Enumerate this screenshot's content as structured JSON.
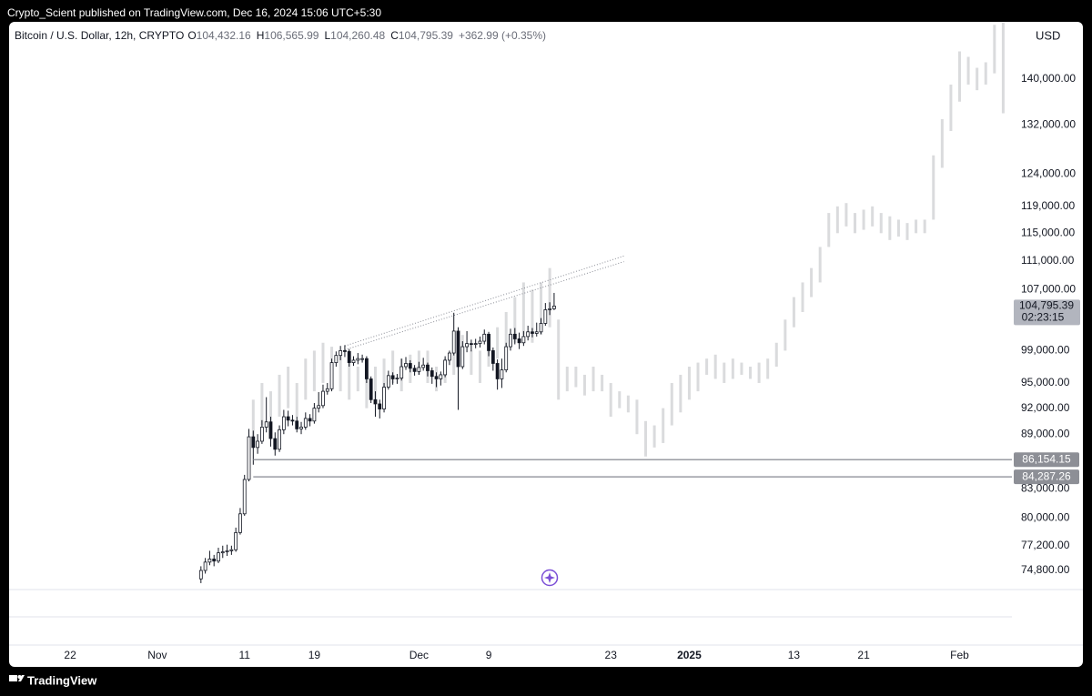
{
  "header": {
    "publisher": "Crypto_Scient published on TradingView.com, Dec 16, 2024 15:06 UTC+5:30"
  },
  "footer": {
    "brand": "TradingView"
  },
  "chart_data": {
    "type": "candlestick",
    "title": "Bitcoin / U.S. Dollar, 12h, CRYPTO",
    "legend": [
      {
        "key": "O",
        "value": "104,432.16"
      },
      {
        "key": "H",
        "value": "106,565.99"
      },
      {
        "key": "L",
        "value": "104,260.48"
      },
      {
        "key": "C",
        "value": "104,795.39"
      }
    ],
    "change": "+362.99 (+0.35%)",
    "currency": "USD",
    "log_scale": true,
    "colors": {
      "up": "#ffffff",
      "down": "#131722",
      "wick": "#131722"
    },
    "x": [
      "2024-11-06T00:00",
      "2024-11-06T12:00",
      "2024-11-07T00:00",
      "2024-11-07T12:00",
      "2024-11-08T00:00",
      "2024-11-08T12:00",
      "2024-11-09T00:00",
      "2024-11-09T12:00",
      "2024-11-10T00:00",
      "2024-11-10T12:00",
      "2024-11-11T00:00",
      "2024-11-11T12:00",
      "2024-11-12T00:00",
      "2024-11-12T12:00",
      "2024-11-13T00:00",
      "2024-11-13T12:00",
      "2024-11-14T00:00",
      "2024-11-14T12:00",
      "2024-11-15T00:00",
      "2024-11-15T12:00",
      "2024-11-16T00:00",
      "2024-11-16T12:00",
      "2024-11-17T00:00",
      "2024-11-17T12:00",
      "2024-11-18T00:00",
      "2024-11-18T12:00",
      "2024-11-19T00:00",
      "2024-11-19T12:00",
      "2024-11-20T00:00",
      "2024-11-20T12:00",
      "2024-11-21T00:00",
      "2024-11-21T12:00",
      "2024-11-22T00:00",
      "2024-11-22T12:00",
      "2024-11-23T00:00",
      "2024-11-23T12:00",
      "2024-11-24T00:00",
      "2024-11-24T12:00",
      "2024-11-25T00:00",
      "2024-11-25T12:00",
      "2024-11-26T00:00",
      "2024-11-26T12:00",
      "2024-11-27T00:00",
      "2024-11-27T12:00",
      "2024-11-28T00:00",
      "2024-11-28T12:00",
      "2024-11-29T00:00",
      "2024-11-29T12:00",
      "2024-11-30T00:00",
      "2024-11-30T12:00",
      "2024-12-01T00:00",
      "2024-12-01T12:00",
      "2024-12-02T00:00",
      "2024-12-02T12:00",
      "2024-12-03T00:00",
      "2024-12-03T12:00",
      "2024-12-04T00:00",
      "2024-12-04T12:00",
      "2024-12-05T00:00",
      "2024-12-05T12:00",
      "2024-12-06T00:00",
      "2024-12-06T12:00",
      "2024-12-07T00:00",
      "2024-12-07T12:00",
      "2024-12-08T00:00",
      "2024-12-08T12:00",
      "2024-12-09T00:00",
      "2024-12-09T12:00",
      "2024-12-10T00:00",
      "2024-12-10T12:00",
      "2024-12-11T00:00",
      "2024-12-11T12:00",
      "2024-12-12T00:00",
      "2024-12-12T12:00",
      "2024-12-13T00:00",
      "2024-12-13T12:00",
      "2024-12-14T00:00",
      "2024-12-14T12:00",
      "2024-12-15T00:00",
      "2024-12-15T12:00",
      "2024-12-16T00:00",
      "2024-12-16T12:00"
    ],
    "open": [
      74000,
      74800,
      75600,
      75900,
      75700,
      76500,
      76600,
      76700,
      76800,
      78500,
      80400,
      84000,
      88700,
      87500,
      88200,
      89800,
      90400,
      88500,
      87300,
      89500,
      91000,
      90600,
      90500,
      89600,
      89800,
      90800,
      90500,
      92000,
      92300,
      94000,
      94300,
      97500,
      98400,
      99000,
      98900,
      97500,
      97800,
      98000,
      98000,
      95500,
      93000,
      92500,
      91900,
      94500,
      95900,
      95500,
      95600,
      97000,
      97400,
      96800,
      96400,
      96900,
      97200,
      96500,
      95800,
      95500,
      96000,
      97800,
      98700,
      101500,
      97000,
      99500,
      99900,
      99800,
      99900,
      100200,
      101100,
      99000,
      97400,
      95500,
      96600,
      99500,
      101100,
      100500,
      100000,
      100800,
      101400,
      101200,
      101400,
      102500,
      104300,
      104432.16
    ],
    "high": [
      75200,
      76000,
      76700,
      76300,
      77000,
      77200,
      77300,
      77200,
      79000,
      81000,
      84500,
      89600,
      89400,
      89000,
      90600,
      93300,
      91000,
      89200,
      90000,
      91800,
      91700,
      91200,
      91000,
      90400,
      91500,
      91300,
      92600,
      93900,
      94800,
      95000,
      98000,
      98900,
      99600,
      99700,
      99200,
      98300,
      98700,
      98500,
      98300,
      95800,
      94000,
      93000,
      95000,
      96500,
      96300,
      96100,
      98000,
      98200,
      97800,
      97200,
      97600,
      98100,
      97500,
      96900,
      96300,
      96400,
      98300,
      99000,
      103900,
      102000,
      100200,
      101500,
      100400,
      100500,
      100800,
      101700,
      101400,
      99400,
      97900,
      98000,
      100000,
      101800,
      101900,
      101300,
      101500,
      102200,
      101900,
      102600,
      103200,
      105200,
      105300,
      106565.99
    ],
    "low": [
      73600,
      74500,
      75300,
      75200,
      75500,
      76000,
      76200,
      76300,
      76600,
      78300,
      80200,
      83800,
      85600,
      86800,
      87900,
      89200,
      87600,
      86600,
      87000,
      89000,
      89900,
      90000,
      89200,
      89000,
      89500,
      89900,
      90200,
      91500,
      92000,
      93600,
      94000,
      97000,
      97800,
      98200,
      97000,
      97100,
      97300,
      97500,
      95000,
      92600,
      91000,
      90800,
      91500,
      94200,
      94800,
      94900,
      95300,
      96600,
      96300,
      95900,
      96000,
      96500,
      95800,
      94900,
      94500,
      94700,
      95700,
      97200,
      98400,
      91800,
      96700,
      98800,
      98900,
      99300,
      99400,
      99800,
      98300,
      96500,
      94200,
      94400,
      96300,
      99000,
      99800,
      99200,
      99600,
      100300,
      100700,
      100800,
      101100,
      102200,
      103600,
      104260.48
    ],
    "close": [
      74800,
      75600,
      75900,
      75700,
      76500,
      76600,
      76700,
      76800,
      78500,
      80400,
      84000,
      88700,
      87500,
      88200,
      89800,
      90400,
      88500,
      87300,
      89500,
      91000,
      90600,
      90500,
      89600,
      89800,
      90800,
      90500,
      92000,
      92300,
      94000,
      94300,
      97500,
      98400,
      99000,
      98900,
      97500,
      97800,
      98000,
      98000,
      95500,
      93000,
      92500,
      91900,
      94500,
      95900,
      95500,
      95600,
      97000,
      97400,
      96800,
      96400,
      96900,
      97200,
      96500,
      95800,
      95500,
      96000,
      97800,
      98700,
      101500,
      97000,
      99500,
      99900,
      99800,
      99900,
      100200,
      101100,
      99000,
      97400,
      95500,
      96600,
      99500,
      101100,
      100500,
      100000,
      100800,
      101400,
      101200,
      101400,
      102500,
      104300,
      104432.16,
      104795.39
    ],
    "projection": {
      "color": "#dadbdd",
      "x": [
        "2024-11-12",
        "2024-11-13",
        "2024-11-14",
        "2024-11-15",
        "2024-11-16",
        "2024-11-17",
        "2024-11-18",
        "2024-11-19",
        "2024-11-20",
        "2024-11-21",
        "2024-11-22",
        "2024-11-23",
        "2024-11-24",
        "2024-11-25",
        "2024-11-26",
        "2024-11-27",
        "2024-11-28",
        "2024-11-29",
        "2024-11-30",
        "2024-12-01",
        "2024-12-02",
        "2024-12-03",
        "2024-12-04",
        "2024-12-05",
        "2024-12-06",
        "2024-12-07",
        "2024-12-08",
        "2024-12-09",
        "2024-12-10",
        "2024-12-11",
        "2024-12-12",
        "2024-12-13",
        "2024-12-14",
        "2024-12-15",
        "2024-12-16",
        "2024-12-17",
        "2024-12-18",
        "2024-12-19",
        "2024-12-20",
        "2024-12-21",
        "2024-12-22",
        "2024-12-23",
        "2024-12-24",
        "2024-12-25",
        "2024-12-26",
        "2024-12-27",
        "2024-12-28",
        "2024-12-29",
        "2024-12-30",
        "2024-12-31",
        "2025-01-01",
        "2025-01-02",
        "2025-01-03",
        "2025-01-04",
        "2025-01-05",
        "2025-01-06",
        "2025-01-07",
        "2025-01-08",
        "2025-01-09",
        "2025-01-10",
        "2025-01-11",
        "2025-01-12",
        "2025-01-13",
        "2025-01-14",
        "2025-01-15",
        "2025-01-16",
        "2025-01-17",
        "2025-01-18",
        "2025-01-19",
        "2025-01-20",
        "2025-01-21",
        "2025-01-22",
        "2025-01-23",
        "2025-01-24",
        "2025-01-25",
        "2025-01-26",
        "2025-01-27",
        "2025-01-28",
        "2025-01-29",
        "2025-01-30",
        "2025-01-31",
        "2025-02-01",
        "2025-02-02",
        "2025-02-03",
        "2025-02-04",
        "2025-02-05",
        "2025-02-06"
      ],
      "low": [
        88000,
        90000,
        89000,
        91000,
        92000,
        91000,
        93000,
        94000,
        95000,
        96000,
        94000,
        93000,
        94000,
        92000,
        93000,
        94000,
        95000,
        94000,
        95000,
        96000,
        95000,
        94000,
        95000,
        96000,
        97000,
        96000,
        95000,
        97000,
        98000,
        99000,
        100000,
        101000,
        100000,
        101000,
        102000,
        93000,
        94000,
        94500,
        93500,
        94000,
        94000,
        91000,
        92000,
        91500,
        89000,
        86500,
        87500,
        88000,
        90000,
        91500,
        93000,
        94000,
        96000,
        95500,
        95000,
        95500,
        96000,
        95500,
        95000,
        95500,
        97000,
        99000,
        102000,
        104000,
        106000,
        108000,
        113000,
        115000,
        116000,
        115000,
        115500,
        116000,
        115000,
        114000,
        114500,
        114000,
        115000,
        115000,
        117000,
        125000,
        131000,
        136000,
        139000,
        138000,
        139000,
        141000,
        134000
      ],
      "high": [
        93000,
        95000,
        94000,
        96000,
        97000,
        95000,
        98000,
        99000,
        100000,
        99500,
        99000,
        98000,
        97000,
        96000,
        97000,
        98000,
        99000,
        98000,
        98500,
        99000,
        99000,
        97000,
        98000,
        100000,
        101000,
        99000,
        99000,
        101000,
        102000,
        104000,
        106000,
        108000,
        107000,
        108000,
        110000,
        103000,
        97000,
        97000,
        96000,
        97000,
        96000,
        95000,
        94000,
        93500,
        93000,
        90500,
        90000,
        92000,
        95000,
        96000,
        97000,
        97500,
        98000,
        98500,
        97500,
        98000,
        97500,
        97000,
        97500,
        98000,
        100000,
        103000,
        106000,
        108000,
        110000,
        113000,
        118000,
        119000,
        119500,
        118000,
        118500,
        119000,
        118000,
        117500,
        117000,
        116500,
        117000,
        117000,
        127000,
        133000,
        139000,
        145000,
        144000,
        142000,
        143000,
        150000,
        151000
      ]
    },
    "trendlines": [
      {
        "x": [
          "2024-11-22T12:00",
          "2024-12-24T12:00"
        ],
        "y": [
          99600,
          111700
        ]
      },
      {
        "x": [
          "2024-11-22T12:00",
          "2024-12-24T12:00"
        ],
        "y": [
          99100,
          110900
        ]
      }
    ],
    "levels": [
      {
        "value": 86154.15,
        "label": "86,154.15",
        "from": "2024-11-12"
      },
      {
        "value": 84287.26,
        "label": "84,287.26",
        "from": "2024-11-12"
      }
    ],
    "last_price": {
      "value": 104795.39,
      "label": "104,795.39",
      "countdown": "02:23:15"
    },
    "ylim": [
      73000,
      150400
    ],
    "yticks": [
      {
        "value": 140000,
        "label": "140,000.00"
      },
      {
        "value": 132000,
        "label": "132,000.00"
      },
      {
        "value": 124000,
        "label": "124,000.00"
      },
      {
        "value": 119000,
        "label": "119,000.00"
      },
      {
        "value": 115000,
        "label": "115,000.00"
      },
      {
        "value": 111000,
        "label": "111,000.00"
      },
      {
        "value": 107000,
        "label": "107,000.00"
      },
      {
        "value": 99000,
        "label": "99,000.00"
      },
      {
        "value": 95000,
        "label": "95,000.00"
      },
      {
        "value": 92000,
        "label": "92,000.00"
      },
      {
        "value": 89000,
        "label": "89,000.00"
      },
      {
        "value": 83000,
        "label": "83,000.00"
      },
      {
        "value": 80000,
        "label": "80,000.00"
      },
      {
        "value": 77200,
        "label": "77,200.00"
      },
      {
        "value": 74800,
        "label": "74,800.00"
      }
    ],
    "xlim": [
      "2024-10-15",
      "2025-02-07"
    ],
    "xticks": [
      {
        "value": "2024-10-22",
        "label": "22"
      },
      {
        "value": "2024-11-01",
        "label": "Nov"
      },
      {
        "value": "2024-11-11",
        "label": "11"
      },
      {
        "value": "2024-11-19",
        "label": "19"
      },
      {
        "value": "2024-12-01",
        "label": "Dec"
      },
      {
        "value": "2024-12-09",
        "label": "9"
      },
      {
        "value": "2024-12-23",
        "label": "23"
      },
      {
        "value": "2025-01-01",
        "label": "2025"
      },
      {
        "value": "2025-01-13",
        "label": "13"
      },
      {
        "value": "2025-01-21",
        "label": "21"
      },
      {
        "value": "2025-02-01",
        "label": "Feb"
      }
    ]
  }
}
